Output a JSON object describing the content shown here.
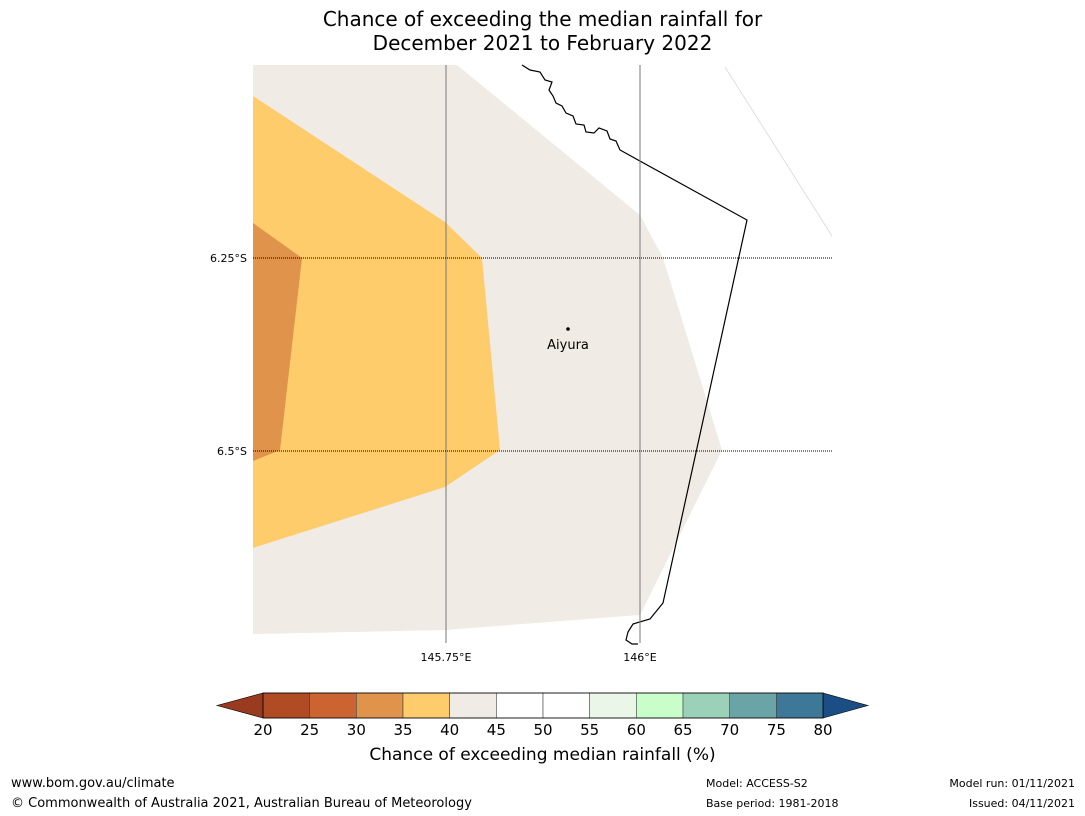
{
  "title": {
    "line1": "Chance of exceeding the median rainfall for",
    "line2": "December 2021 to February 2022"
  },
  "map": {
    "lat_labels": [
      "6.25°S",
      "6.5°S"
    ],
    "lon_labels": [
      "145.75°E",
      "146°E"
    ],
    "place": {
      "name": "Aiyura"
    }
  },
  "colorbar": {
    "label": "Chance of exceeding median rainfall (%)",
    "ticks": [
      "20",
      "25",
      "30",
      "35",
      "40",
      "45",
      "50",
      "55",
      "60",
      "65",
      "70",
      "75",
      "80"
    ],
    "colors": [
      "#b14b24",
      "#cb6430",
      "#e0934a",
      "#fecc6a",
      "#f0ebe4",
      "#ffffff",
      "#ffffff",
      "#eaf6e7",
      "#c9fdca",
      "#9bd1b8",
      "#6ba4a6",
      "#3e7899"
    ],
    "under_color": "#9a3b20",
    "over_color": "#1a4e85"
  },
  "footer": {
    "url": "www.bom.gov.au/climate",
    "copyright": "© Commonwealth of Australia 2021, Australian Bureau of Meteorology",
    "model": "Model: ACCESS-S2",
    "base_period": "Base period: 1981-2018",
    "model_run": "Model run: 01/11/2021",
    "issued": "Issued: 04/11/2021"
  }
}
